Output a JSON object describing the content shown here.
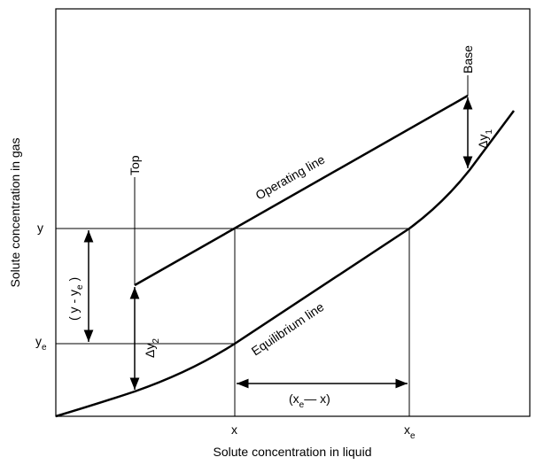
{
  "axes": {
    "x_label": "Solute concentration in liquid",
    "y_label": "Solute concentration in gas"
  },
  "ticks": {
    "y": {
      "main": "y"
    },
    "ye": {
      "main": "y",
      "sub": "e"
    },
    "x": {
      "main": "x"
    },
    "xe": {
      "main": "x",
      "sub": "e"
    }
  },
  "annotations": {
    "top": "Top",
    "base": "Base",
    "operating_line": "Operating line",
    "equilibrium_line": "Equilibrium line",
    "dy1": {
      "main": "Δy",
      "sub": "1"
    },
    "dy2": {
      "main": "Δy",
      "sub": "2"
    },
    "y_diff": {
      "pre": "( y - y",
      "sub": "e",
      "post": " )"
    },
    "x_diff": {
      "pre": "(x",
      "sub": "e",
      "post": "— x)"
    }
  }
}
